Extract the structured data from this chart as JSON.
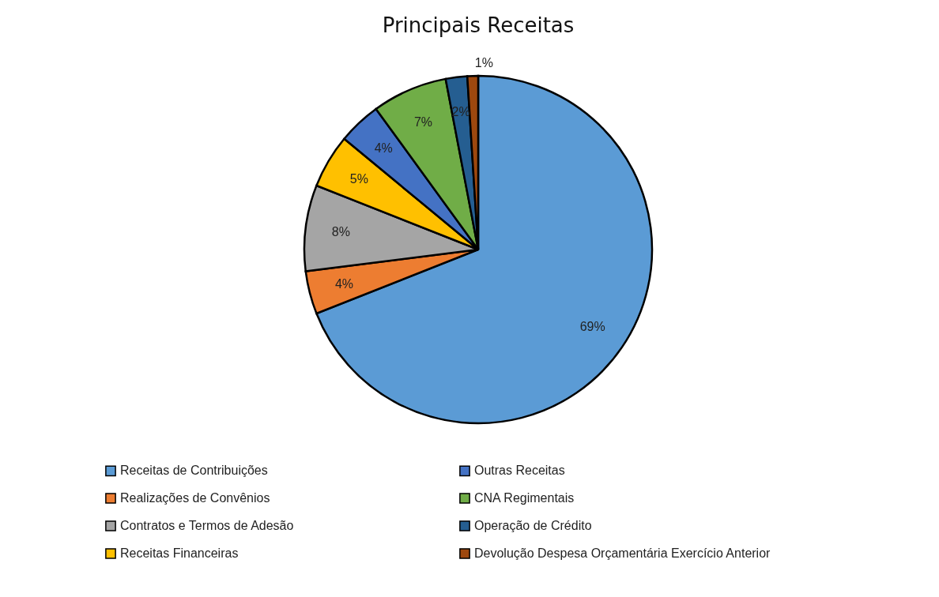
{
  "chart_data": {
    "type": "pie",
    "title": "Principais Receitas",
    "categories": [
      "Receitas de Contribuições",
      "Realizações de Convênios",
      "Contratos e Termos de Adesão",
      "Receitas Financeiras",
      "Outras Receitas",
      "CNA Regimentais",
      "Operação de Crédito",
      "Devolução Despesa Orçamentária Exercício Anterior"
    ],
    "values": [
      69,
      4,
      8,
      5,
      4,
      7,
      2,
      1
    ],
    "value_labels": [
      "69%",
      "4%",
      "8%",
      "5%",
      "4%",
      "7%",
      "2%",
      "1%"
    ],
    "colors": [
      "#5b9bd5",
      "#ed7d31",
      "#a5a5a5",
      "#ffc000",
      "#4472c4",
      "#70ad47",
      "#255e91",
      "#9e480e"
    ],
    "legend": "bottom"
  }
}
